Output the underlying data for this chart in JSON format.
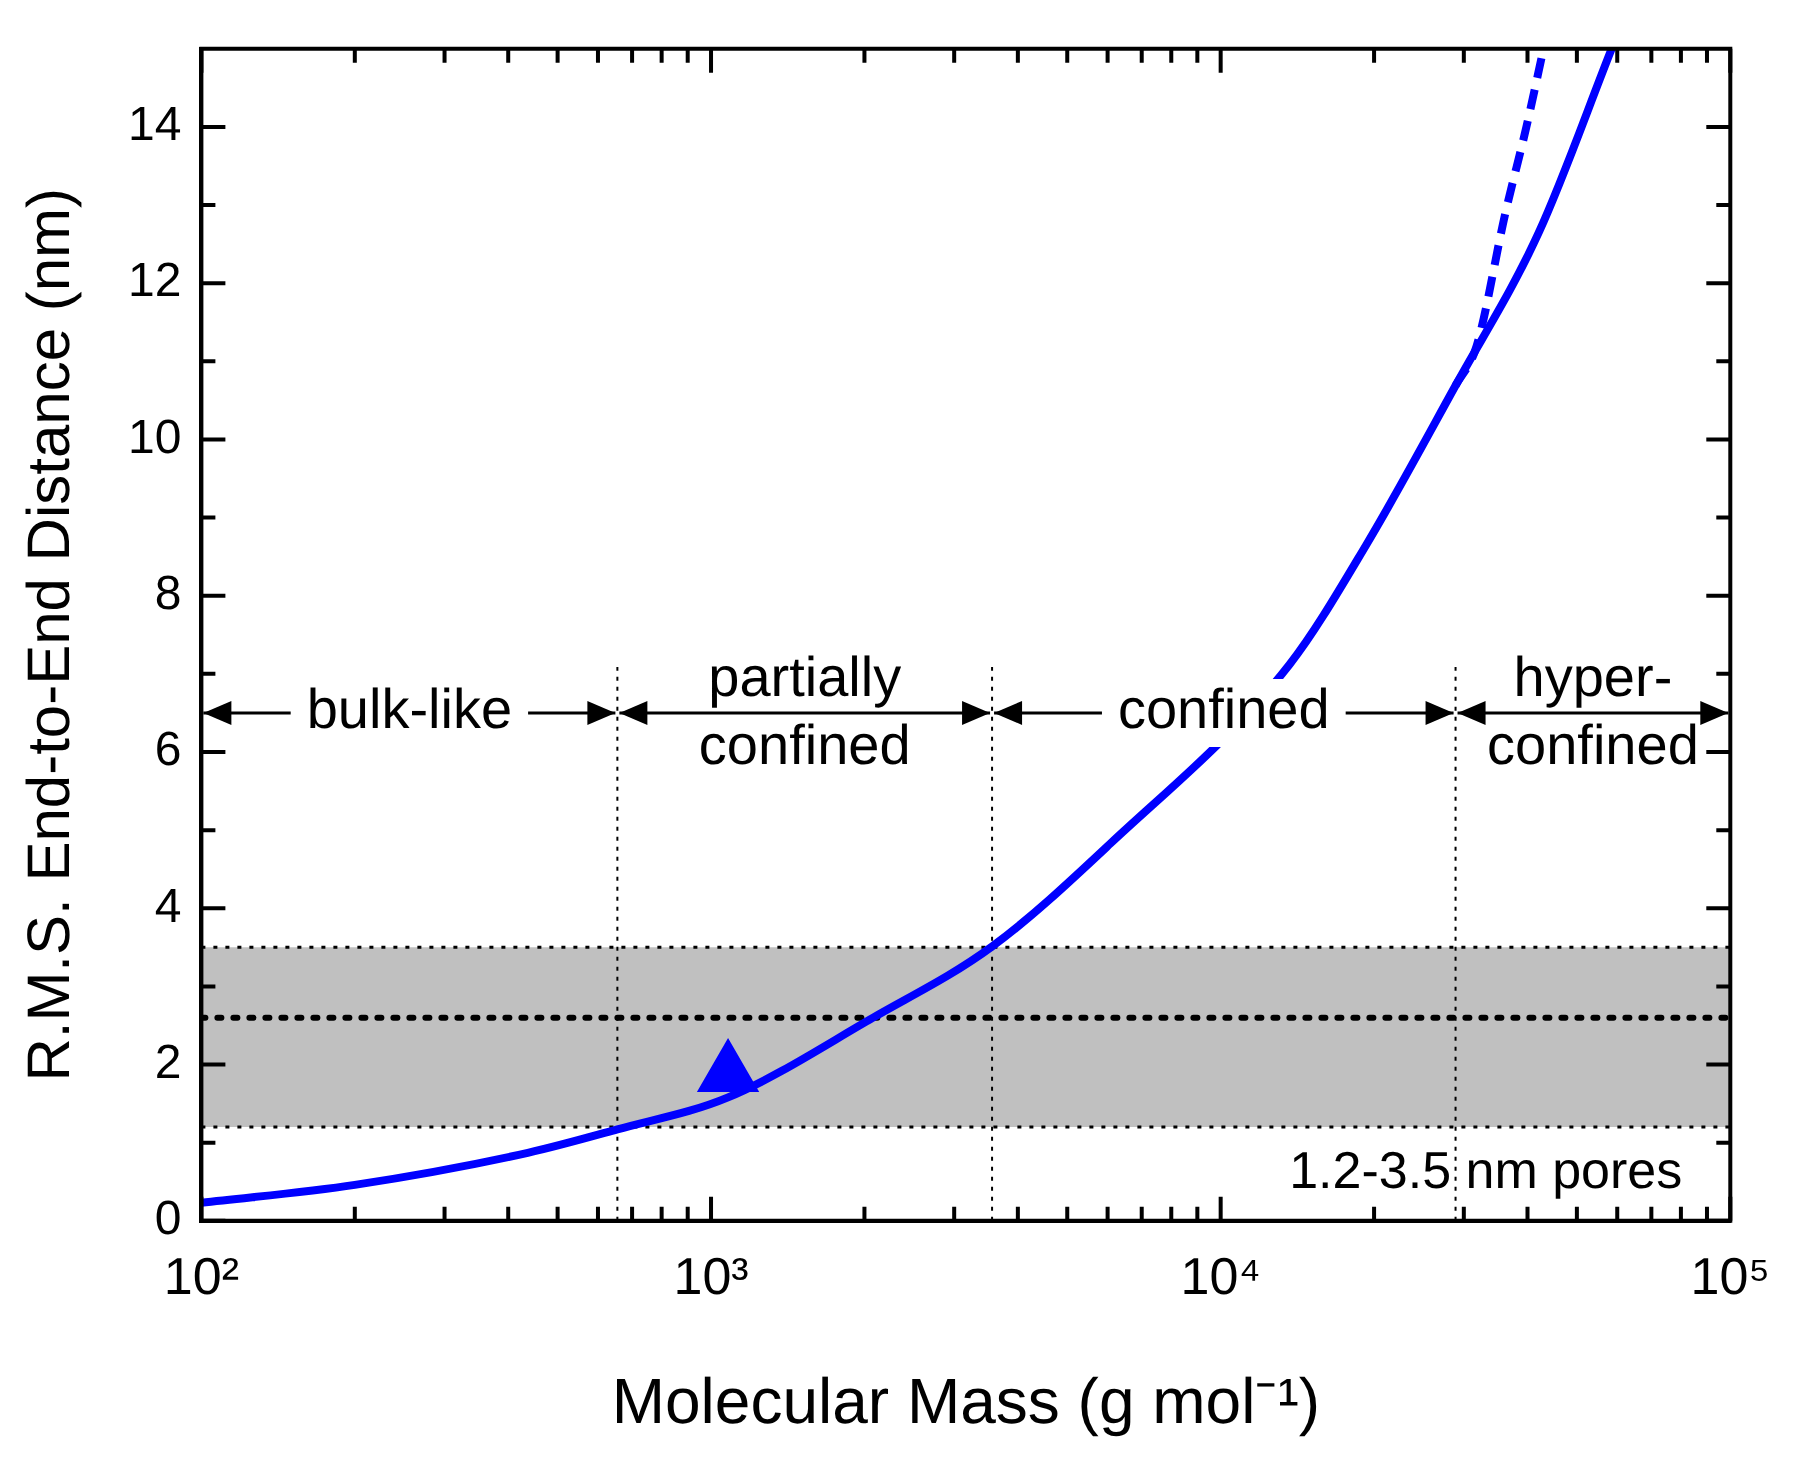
{
  "chart_data": {
    "type": "line",
    "xlabel": "Molecular Mass (g mol⁻¹)",
    "ylabel": "R.M.S. End-to-End Distance (nm)",
    "log": "x",
    "grid": false,
    "legend": false,
    "marker": "none",
    "xlim": [
      100,
      100000
    ],
    "ylim": [
      0,
      15
    ],
    "xticks": [
      {
        "value": 100,
        "label": "10²"
      },
      {
        "value": 200,
        "label": null
      },
      {
        "value": 300,
        "label": null
      },
      {
        "value": 400,
        "label": null
      },
      {
        "value": 500,
        "label": null
      },
      {
        "value": 600,
        "label": null
      },
      {
        "value": 700,
        "label": null
      },
      {
        "value": 800,
        "label": null
      },
      {
        "value": 900,
        "label": null
      },
      {
        "value": 1000,
        "label": "10³"
      },
      {
        "value": 2000,
        "label": null
      },
      {
        "value": 3000,
        "label": null
      },
      {
        "value": 4000,
        "label": null
      },
      {
        "value": 5000,
        "label": null
      },
      {
        "value": 6000,
        "label": null
      },
      {
        "value": 7000,
        "label": null
      },
      {
        "value": 8000,
        "label": null
      },
      {
        "value": 9000,
        "label": null
      },
      {
        "value": 10000,
        "label": "10⁴"
      },
      {
        "value": 20000,
        "label": null
      },
      {
        "value": 30000,
        "label": null
      },
      {
        "value": 40000,
        "label": null
      },
      {
        "value": 50000,
        "label": null
      },
      {
        "value": 60000,
        "label": null
      },
      {
        "value": 70000,
        "label": null
      },
      {
        "value": 80000,
        "label": null
      },
      {
        "value": 90000,
        "label": null
      },
      {
        "value": 100000,
        "label": "10⁵"
      }
    ],
    "yticks": [
      0,
      {
        "value": 1,
        "label": null
      },
      2,
      {
        "value": 3,
        "label": null
      },
      4,
      {
        "value": 5,
        "label": null
      },
      6,
      {
        "value": 7,
        "label": null
      },
      8,
      {
        "value": 9,
        "label": null
      },
      10,
      {
        "value": 11,
        "label": null
      },
      12,
      {
        "value": 13,
        "label": null
      },
      14
    ],
    "series": [
      {
        "color": "#0000ff",
        "line_style": "solid",
        "x": [
          100,
          200,
          437,
          655,
          1080,
          2080,
          3560,
          6080,
          13650,
          19300,
          28900,
          42100,
          58500
        ],
        "values": [
          0.23,
          0.46,
          0.87,
          1.17,
          1.58,
          2.6,
          3.51,
          4.83,
          7.12,
          8.65,
          10.69,
          12.65,
          15.0
        ]
      },
      {
        "color": "#0000ff",
        "line_style": "dashed",
        "x": [
          28900,
          31800,
          36200,
          39800,
          43000
        ],
        "values": [
          10.69,
          11.2,
          12.9,
          14.0,
          15.0
        ]
      },
      {
        "type": "scatter",
        "color": "#0000ff",
        "marker": "triangle",
        "x": [
          1080
        ],
        "values": [
          1.88
        ]
      }
    ],
    "ref_lines": [
      {
        "axis": "x",
        "value": 655,
        "color": "#000000",
        "line_style": "dotted"
      },
      {
        "axis": "x",
        "value": 3560,
        "color": "#000000",
        "line_style": "dotted"
      },
      {
        "axis": "x",
        "value": 28900,
        "color": "#000000",
        "line_style": "dotted"
      },
      {
        "axis": "y",
        "value": 2.6,
        "color": "#000000",
        "line_style": "dotted"
      },
      {
        "axis": "y",
        "value": 1.2,
        "color": "#000000",
        "line_style": "dotted"
      },
      {
        "axis": "y",
        "value": 3.5,
        "color": "#000000",
        "line_style": "dotted"
      }
    ],
    "bands": [
      {
        "axis": "y",
        "from": 1.2,
        "to": 3.5,
        "color": "#c0c0c0",
        "label": "1.2-3.5 nm pores"
      }
    ],
    "annotations": [
      {
        "text": "bulk-like",
        "x": 655,
        "y": 6.5
      },
      {
        "text": "partially\nconfined",
        "x": 3560,
        "y": 6.5
      },
      {
        "text": "confined",
        "x": 28900,
        "y": 6.5
      },
      "hyper-\nconfined"
    ]
  }
}
